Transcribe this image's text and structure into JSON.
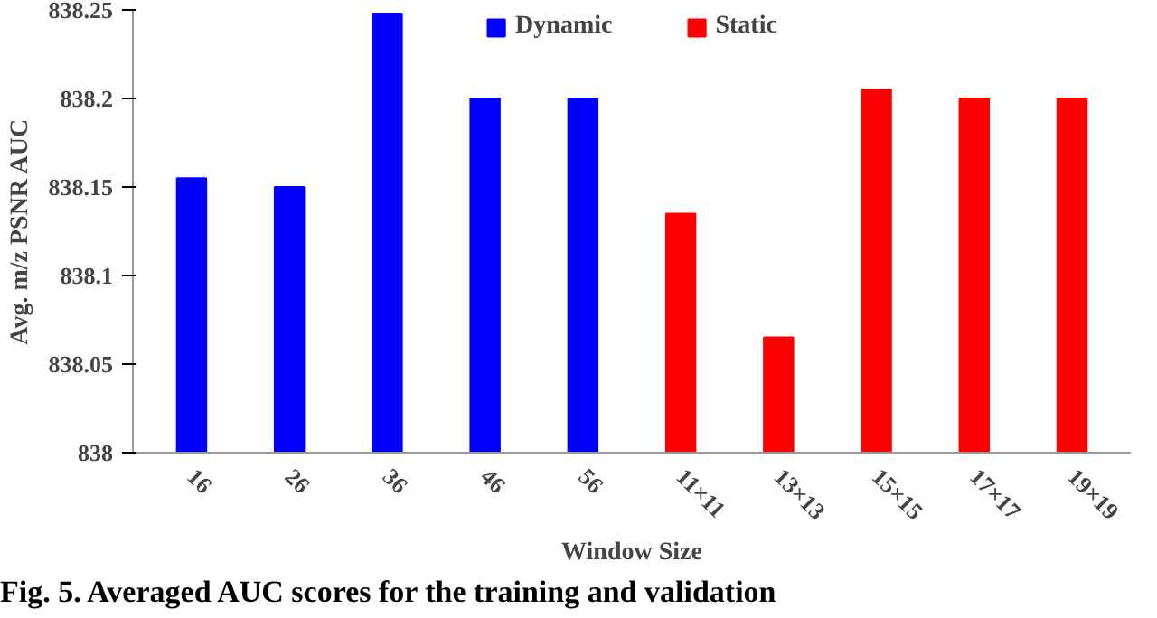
{
  "chart_data": {
    "type": "bar",
    "xlabel": "Window Size",
    "ylabel": "Avg. m/z PSNR AUC",
    "categories": [
      "16",
      "26",
      "36",
      "46",
      "56",
      "11×11",
      "13×13",
      "15×15",
      "17×17",
      "19×19"
    ],
    "series": [
      {
        "name": "Dynamic",
        "color": "#0000ff",
        "values": [
          838.155,
          838.15,
          838.248,
          838.2,
          838.2,
          null,
          null,
          null,
          null,
          null
        ]
      },
      {
        "name": "Static",
        "color": "#ff0000",
        "values": [
          null,
          null,
          null,
          null,
          null,
          838.135,
          838.065,
          838.205,
          838.2,
          838.2
        ]
      }
    ],
    "ylim": [
      838,
      838.25
    ],
    "yticks": [
      838,
      838.05,
      838.1,
      838.15,
      838.2,
      838.25
    ],
    "grid": false,
    "legend": "top",
    "annotations": [
      "Fig. 5. Averaged AUC scores for the training and validation"
    ]
  }
}
